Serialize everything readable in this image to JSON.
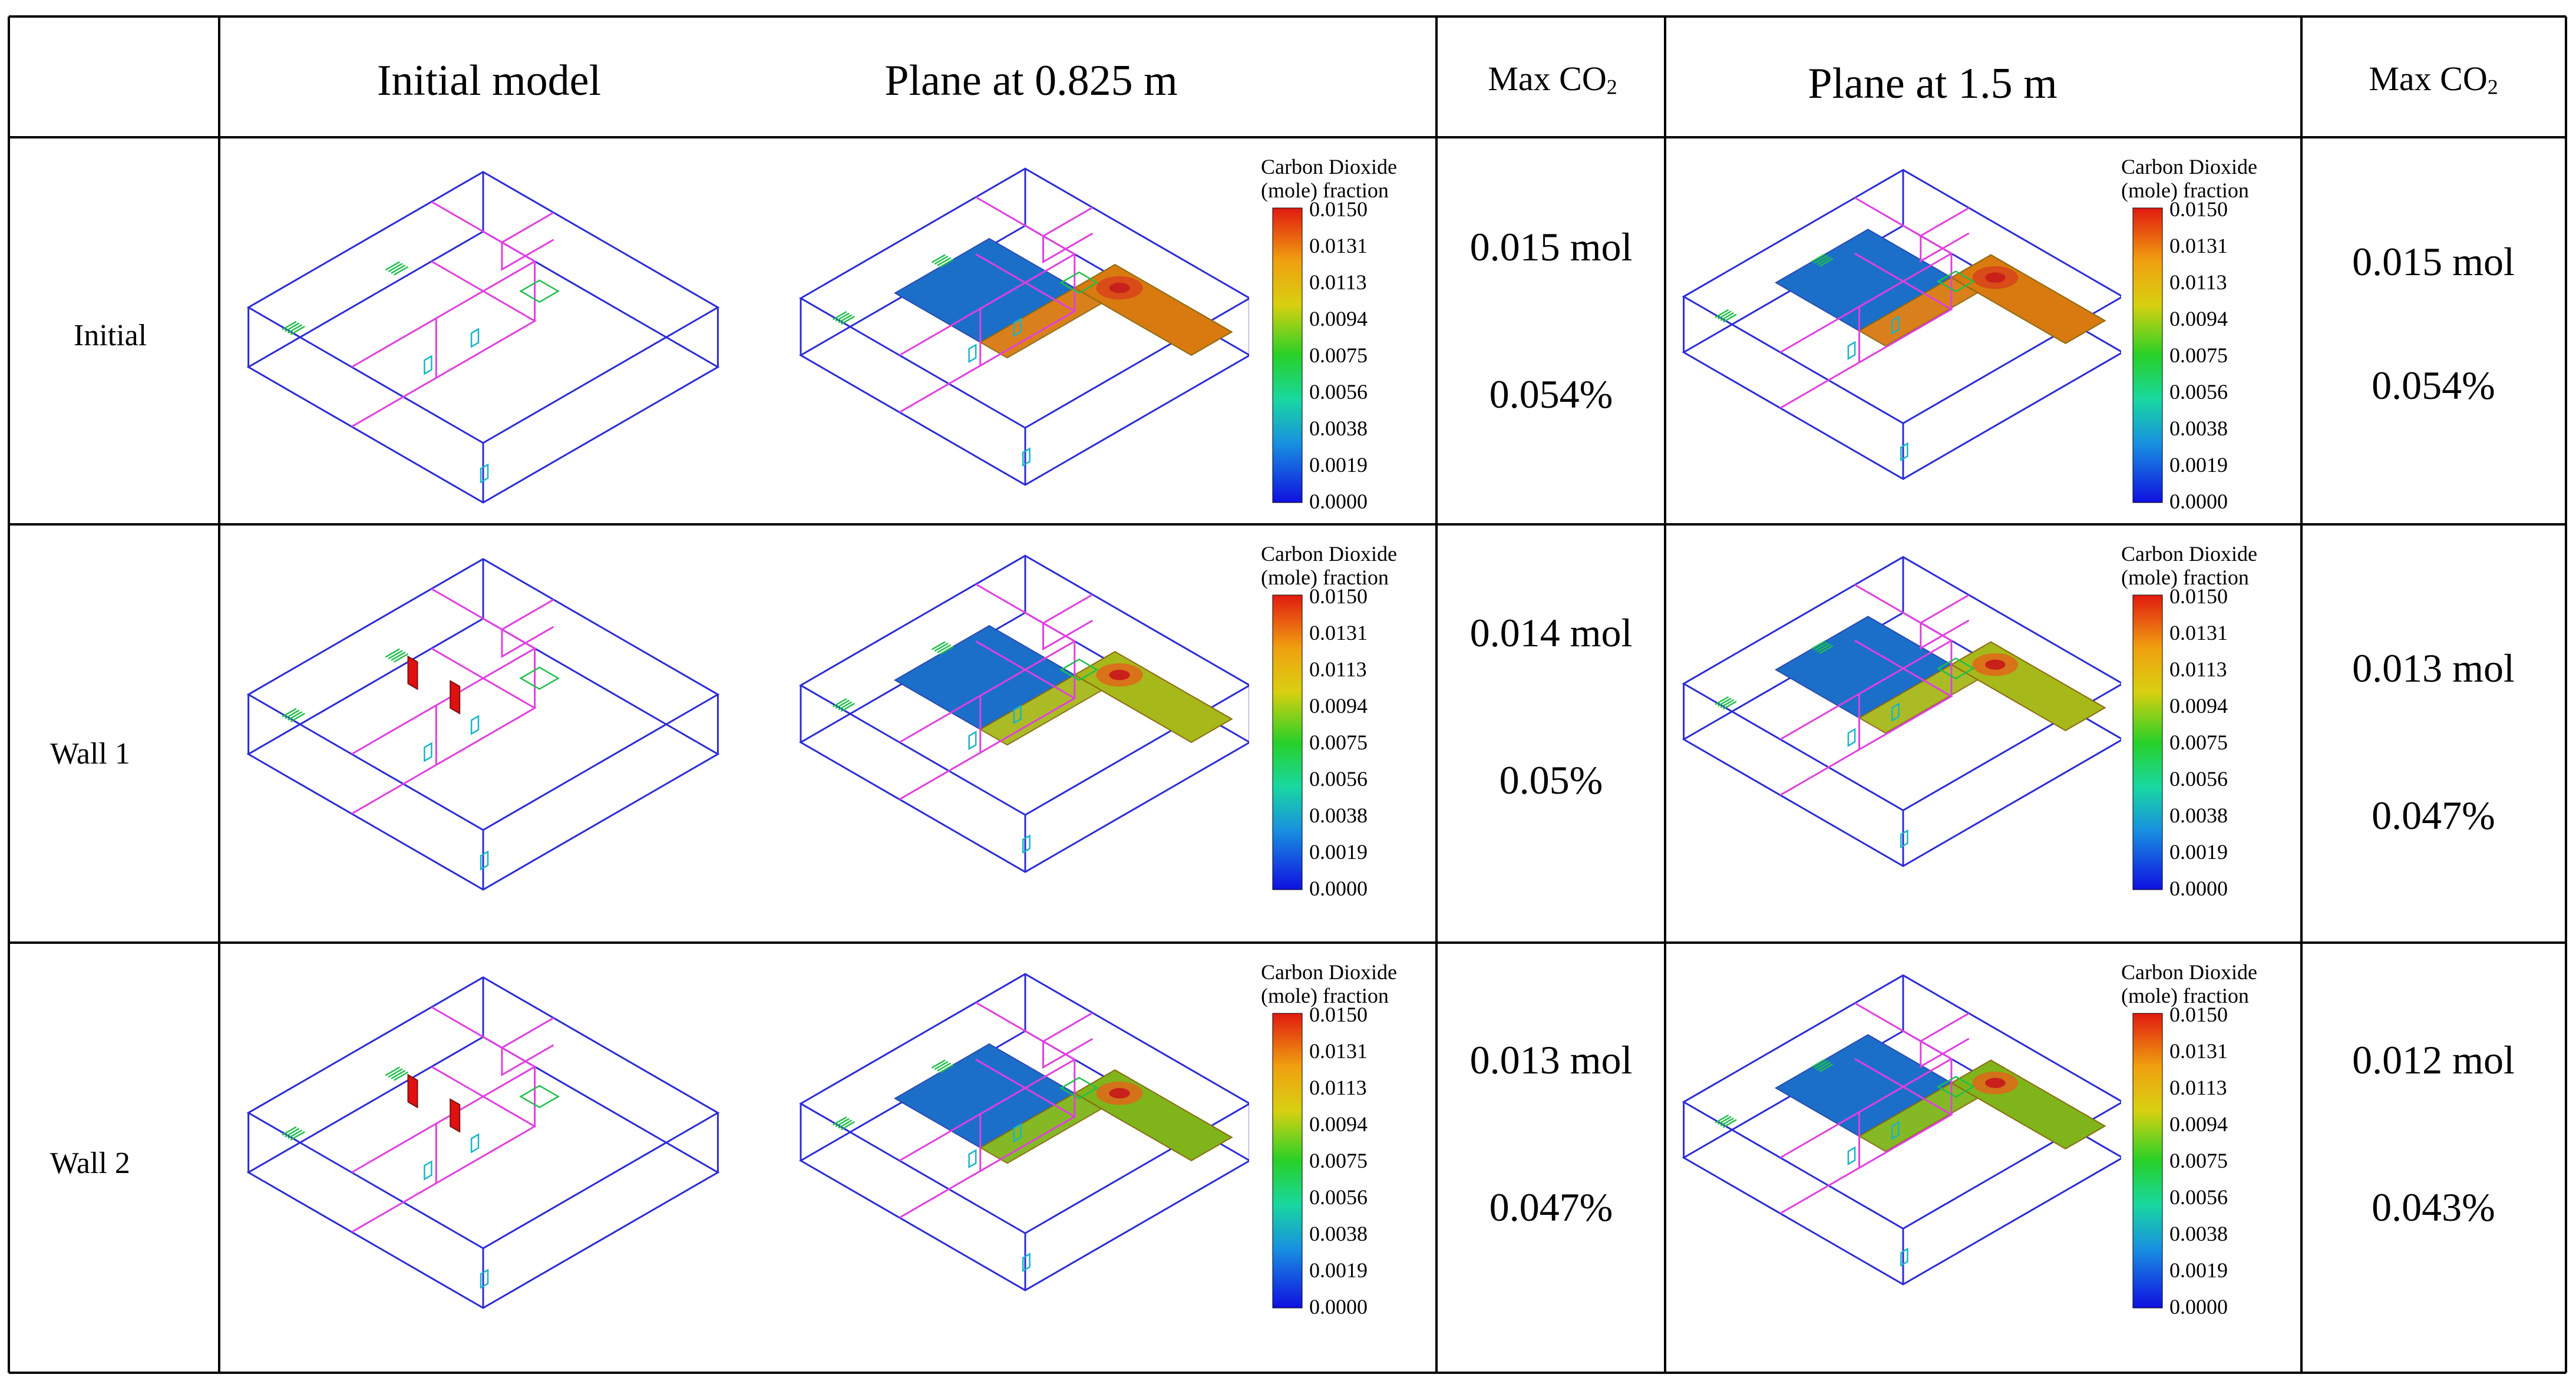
{
  "table": {
    "headers": {
      "initial_model": "Initial model",
      "plane_low": "Plane at 0.825 m",
      "max_co2_a": "Max CO",
      "max_co2_a_sub": "2",
      "plane_high": "Plane at 1.5 m",
      "max_co2_b": "Max CO",
      "max_co2_b_sub": "2"
    },
    "rows": [
      {
        "label": "Initial",
        "low_mol": "0.015 mol",
        "low_pct": "0.054%",
        "high_mol": "0.015 mol",
        "high_pct": "0.054%"
      },
      {
        "label": "Wall 1",
        "low_mol": "0.014 mol",
        "low_pct": "0.05%",
        "high_mol": "0.013 mol",
        "high_pct": "0.047%"
      },
      {
        "label": "Wall 2",
        "low_mol": "0.013 mol",
        "low_pct": "0.047%",
        "high_mol": "0.012 mol",
        "high_pct": "0.043%"
      }
    ]
  },
  "legend": {
    "title_line1": "Carbon Dioxide",
    "title_line2": "(mole) fraction",
    "ticks": [
      "0.0150",
      "0.0131",
      "0.0113",
      "0.0094",
      "0.0075",
      "0.0056",
      "0.0038",
      "0.0019",
      "0.0000"
    ]
  },
  "colors": {
    "grid": "#000000",
    "outline": "#2b2bd6",
    "partition": "#e040e0",
    "vent": "#1fbf4a",
    "window": "#15b5c8",
    "wall": "#e01010",
    "cool": "#1b6fc9",
    "warm_high": "#d87a10",
    "warm_low": "#a7b81a"
  }
}
